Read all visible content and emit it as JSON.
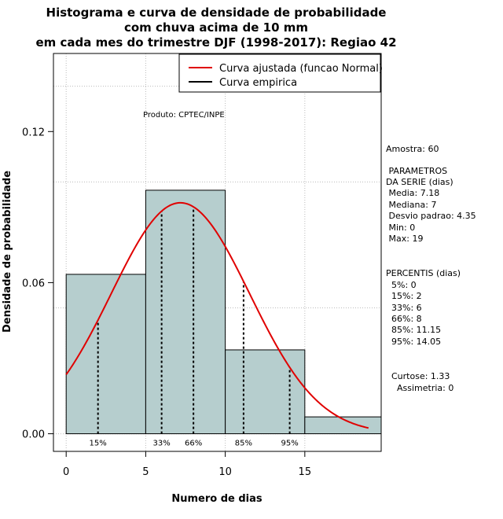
{
  "chart_data": {
    "type": "bar",
    "title": [
      "Histograma e curva de densidade de probabilidade",
      "com chuva acima de 10 mm",
      "em cada mes do trimestre DJF (1998-2017): Regiao 42"
    ],
    "xlabel": "Numero de dias",
    "ylabel": "Densidade de probabilidade",
    "xlim": [
      -0.8,
      19.8
    ],
    "ylim": [
      -0.007,
      0.151
    ],
    "x_ticks": [
      0,
      5,
      10,
      15
    ],
    "y_ticks": [
      0.0,
      0.06,
      0.12
    ],
    "y_tick_labels": [
      "0.00",
      "0.06",
      "0.12"
    ],
    "grid": true,
    "bins": [
      {
        "from": 0,
        "to": 5,
        "density": 0.0633
      },
      {
        "from": 5,
        "to": 10,
        "density": 0.0967
      },
      {
        "from": 10,
        "to": 15,
        "density": 0.0333
      },
      {
        "from": 15,
        "to": 20,
        "density": 0.0067
      }
    ],
    "normal_fit": {
      "mean": 7.18,
      "sd": 4.35,
      "x_from": 0,
      "x_to": 19
    },
    "percentile_lines": [
      {
        "label": "15%",
        "x": 2
      },
      {
        "label": "33%",
        "x": 6
      },
      {
        "label": "66%",
        "x": 8
      },
      {
        "label": "85%",
        "x": 11.15
      },
      {
        "label": "95%",
        "x": 14.05
      }
    ],
    "legend": {
      "position": "top-right",
      "entries": [
        {
          "label": "Curva ajustada (funcao Normal)",
          "color": "#e00000"
        },
        {
          "label": "Curva empirica",
          "color": "#000000"
        }
      ]
    },
    "annotation": "Produto: CPTEC/INPE",
    "side_stats": [
      "Amostra: 60",
      " PARAMETROS",
      "DA SERIE (dias)",
      " Media: 7.18",
      " Mediana: 7",
      " Desvio padrao: 4.35",
      " Min: 0",
      " Max: 19",
      "PERCENTIS (dias)",
      "  5%: 0",
      "  15%: 2",
      "  33%: 6",
      "  66%: 8",
      "  85%: 11.15",
      "  95%: 14.05",
      "Curtose: 1.33",
      "  Assimetria: 0"
    ]
  },
  "colors": {
    "bar_fill": "#b6cece",
    "bar_stroke": "#000000",
    "fit_curve": "#e00000",
    "grid": "#bbbbbb",
    "axis": "#000000"
  }
}
